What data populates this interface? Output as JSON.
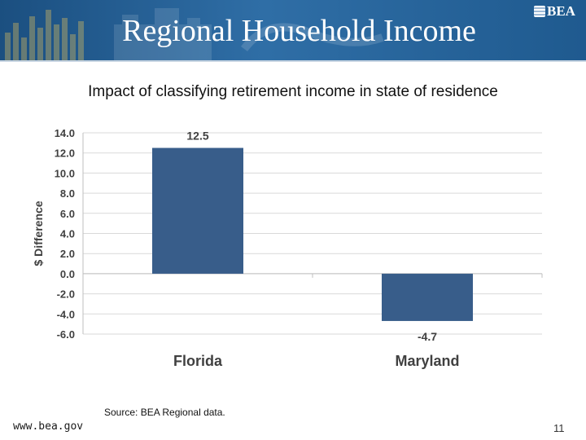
{
  "slide": {
    "title": "Regional Household Income",
    "logo": "BEA",
    "source": "Source: BEA Regional data.",
    "website": "www.bea.gov",
    "page_number": "11"
  },
  "colors": {
    "header": "#1f5a8f",
    "bar": "#385d8a",
    "grid": "#d9d9d9"
  },
  "chart_data": {
    "type": "bar",
    "title": "Impact of classifying retirement income in state of residence",
    "xlabel": "",
    "ylabel": "$ Difference",
    "categories": [
      "Florida",
      "Maryland"
    ],
    "values": [
      12.5,
      -4.7
    ],
    "data_labels": [
      "12.5",
      "-4.7"
    ],
    "ylim": [
      -6.0,
      14.0
    ],
    "yticks": [
      "14.0",
      "12.0",
      "10.0",
      "8.0",
      "6.0",
      "4.0",
      "2.0",
      "0.0",
      "-2.0",
      "-4.0",
      "-6.0"
    ],
    "grid": true,
    "legend": "none"
  }
}
